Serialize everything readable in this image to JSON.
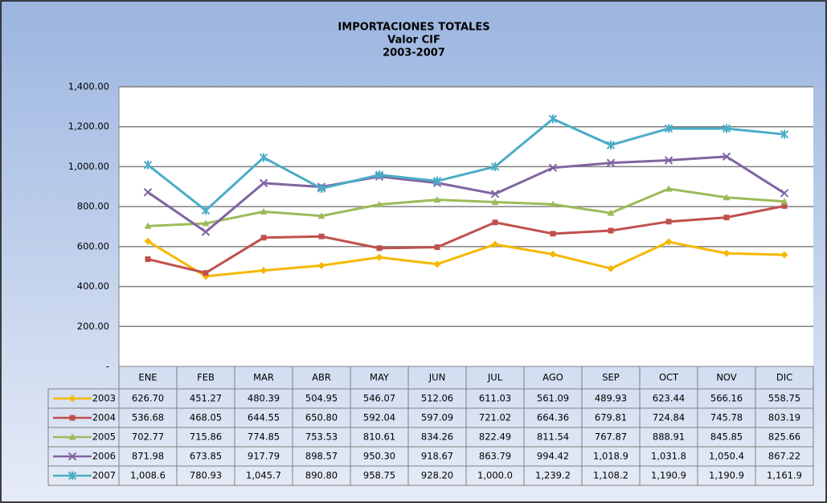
{
  "chart_data": {
    "type": "line",
    "title": [
      "IMPORTACIONES TOTALES",
      "Valor CIF",
      "2003-2007"
    ],
    "categories": [
      "ENE",
      "FEB",
      "MAR",
      "ABR",
      "MAY",
      "JUN",
      "JUL",
      "AGO",
      "SEP",
      "OCT",
      "NOV",
      "DIC"
    ],
    "series": [
      {
        "name": "2003",
        "color": "#f5b800",
        "marker": "diamond",
        "values": [
          626.7,
          451.27,
          480.39,
          504.95,
          546.07,
          512.06,
          611.03,
          561.09,
          489.93,
          623.44,
          566.16,
          558.75
        ],
        "value_labels": [
          "626.70",
          "451.27",
          "480.39",
          "504.95",
          "546.07",
          "512.06",
          "611.03",
          "561.09",
          "489.93",
          "623.44",
          "566.16",
          "558.75"
        ]
      },
      {
        "name": "2004",
        "color": "#c0504d",
        "marker": "square",
        "values": [
          536.68,
          468.05,
          644.55,
          650.8,
          592.04,
          597.09,
          721.02,
          664.36,
          679.81,
          724.84,
          745.78,
          803.19
        ],
        "value_labels": [
          "536.68",
          "468.05",
          "644.55",
          "650.80",
          "592.04",
          "597.09",
          "721.02",
          "664.36",
          "679.81",
          "724.84",
          "745.78",
          "803.19"
        ]
      },
      {
        "name": "2005",
        "color": "#9bbb59",
        "marker": "triangle",
        "values": [
          702.77,
          715.86,
          774.85,
          753.53,
          810.61,
          834.26,
          822.49,
          811.54,
          767.87,
          888.91,
          845.85,
          825.66
        ],
        "value_labels": [
          "702.77",
          "715.86",
          "774.85",
          "753.53",
          "810.61",
          "834.26",
          "822.49",
          "811.54",
          "767.87",
          "888.91",
          "845.85",
          "825.66"
        ]
      },
      {
        "name": "2006",
        "color": "#8064a2",
        "marker": "x",
        "values": [
          871.98,
          673.85,
          917.79,
          898.57,
          950.3,
          918.67,
          863.79,
          994.42,
          1018.9,
          1031.8,
          1050.4,
          867.22
        ],
        "value_labels": [
          "871.98",
          "673.85",
          "917.79",
          "898.57",
          "950.30",
          "918.67",
          "863.79",
          "994.42",
          "1,018.9",
          "1,031.8",
          "1,050.4",
          "867.22"
        ]
      },
      {
        "name": "2007",
        "color": "#4bacc6",
        "marker": "star",
        "values": [
          1008.6,
          780.93,
          1045.7,
          890.8,
          958.75,
          928.2,
          1000.0,
          1239.2,
          1108.2,
          1190.9,
          1190.9,
          1161.9
        ],
        "value_labels": [
          "1,008.6",
          "780.93",
          "1,045.7",
          "890.80",
          "958.75",
          "928.20",
          "1,000.0",
          "1,239.2",
          "1,108.2",
          "1,190.9",
          "1,190.9",
          "1,161.9"
        ]
      }
    ],
    "ylim": [
      0,
      1400
    ],
    "yticks": [
      {
        "value": 0,
        "label": "-"
      },
      {
        "value": 200,
        "label": "200.00"
      },
      {
        "value": 400,
        "label": "400.00"
      },
      {
        "value": 600,
        "label": "600.00"
      },
      {
        "value": 800,
        "label": "800.00"
      },
      {
        "value": 1000,
        "label": "1,000.00"
      },
      {
        "value": 1200,
        "label": "1,200.00"
      },
      {
        "value": 1400,
        "label": "1,400.00"
      }
    ],
    "grid": true
  }
}
